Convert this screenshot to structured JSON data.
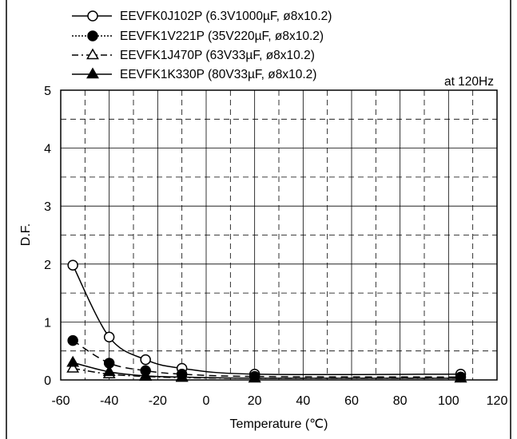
{
  "chart_data": {
    "type": "line",
    "title": "",
    "annotation": "at 120Hz",
    "xlabel": "Temperature (℃)",
    "ylabel": "D.F.",
    "xlim": [
      -60,
      120
    ],
    "ylim": [
      0,
      5
    ],
    "xticks": [
      -60,
      -40,
      -20,
      0,
      20,
      40,
      60,
      80,
      100,
      120
    ],
    "yticks": [
      0,
      1,
      2,
      3,
      4,
      5
    ],
    "grid": true,
    "legend_position": "top",
    "x": [
      -55,
      -40,
      -25,
      -10,
      20,
      105
    ],
    "series": [
      {
        "name": "EEVFK0J102P (6.3V1000µF, ø8x10.2)",
        "line": "solid",
        "marker": "circle-open",
        "values": [
          1.98,
          0.74,
          0.35,
          0.2,
          0.1,
          0.1
        ]
      },
      {
        "name": "EEVFK1V221P (35V220µF, ø8x10.2)",
        "line": "dashed",
        "marker": "circle-filled",
        "values": [
          0.68,
          0.29,
          0.16,
          0.1,
          0.06,
          0.05
        ]
      },
      {
        "name": "EEVFK1J470P (63V33µF, ø8x10.2)",
        "line": "dashdot",
        "marker": "triangle-open",
        "values": [
          0.2,
          0.1,
          0.06,
          0.04,
          0.03,
          0.03
        ]
      },
      {
        "name": "EEVFK1K330P (80V33µF, ø8x10.2)",
        "line": "solid",
        "marker": "triangle-filled",
        "values": [
          0.3,
          0.14,
          0.07,
          0.05,
          0.03,
          0.03
        ]
      }
    ]
  }
}
